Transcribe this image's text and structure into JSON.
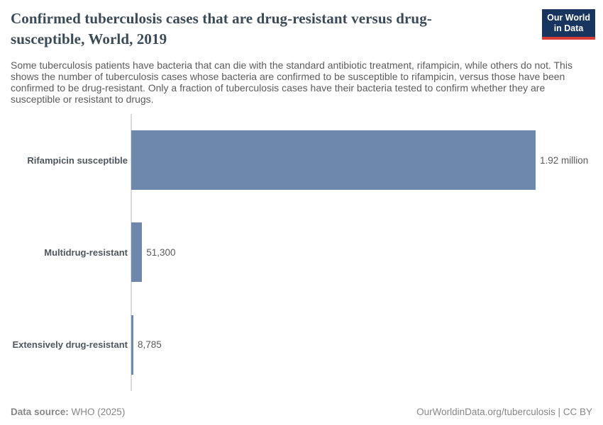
{
  "header": {
    "title": "Confirmed tuberculosis cases that are drug-resistant versus drug-susceptible, World, 2019",
    "subtitle": "Some tuberculosis patients have bacteria that can die with the standard antibiotic treatment, rifampicin, while others do not. This shows the number of tuberculosis cases whose bacteria are confirmed to be susceptible to rifampicin, versus those have been confirmed to be drug-resistant. Only a fraction of tuberculosis cases have their bacteria tested to confirm whether they are susceptible or resistant to drugs.",
    "logo": {
      "line1": "Our World",
      "line2": "in Data",
      "bg_color": "#17355f",
      "accent_color": "#d73c34",
      "text_color": "#ffffff"
    }
  },
  "chart_data": {
    "type": "bar",
    "orientation": "horizontal",
    "title": "Confirmed tuberculosis cases that are drug-resistant versus drug-susceptible, World, 2019",
    "categories": [
      "Rifampicin susceptible",
      "Multidrug-resistant",
      "Extensively drug-resistant"
    ],
    "values": [
      1920000,
      51300,
      8785
    ],
    "value_labels": [
      "1.92 million",
      "51,300",
      "8,785"
    ],
    "bar_color": "#6d87ad",
    "axis_color": "#dbdbdb",
    "xlim": [
      0,
      1920000
    ],
    "grid": false,
    "legend": "none"
  },
  "footer": {
    "datasource_label": "Data source:",
    "datasource_value": "WHO (2025)",
    "attribution": "OurWorldinData.org/tuberculosis | CC BY"
  }
}
